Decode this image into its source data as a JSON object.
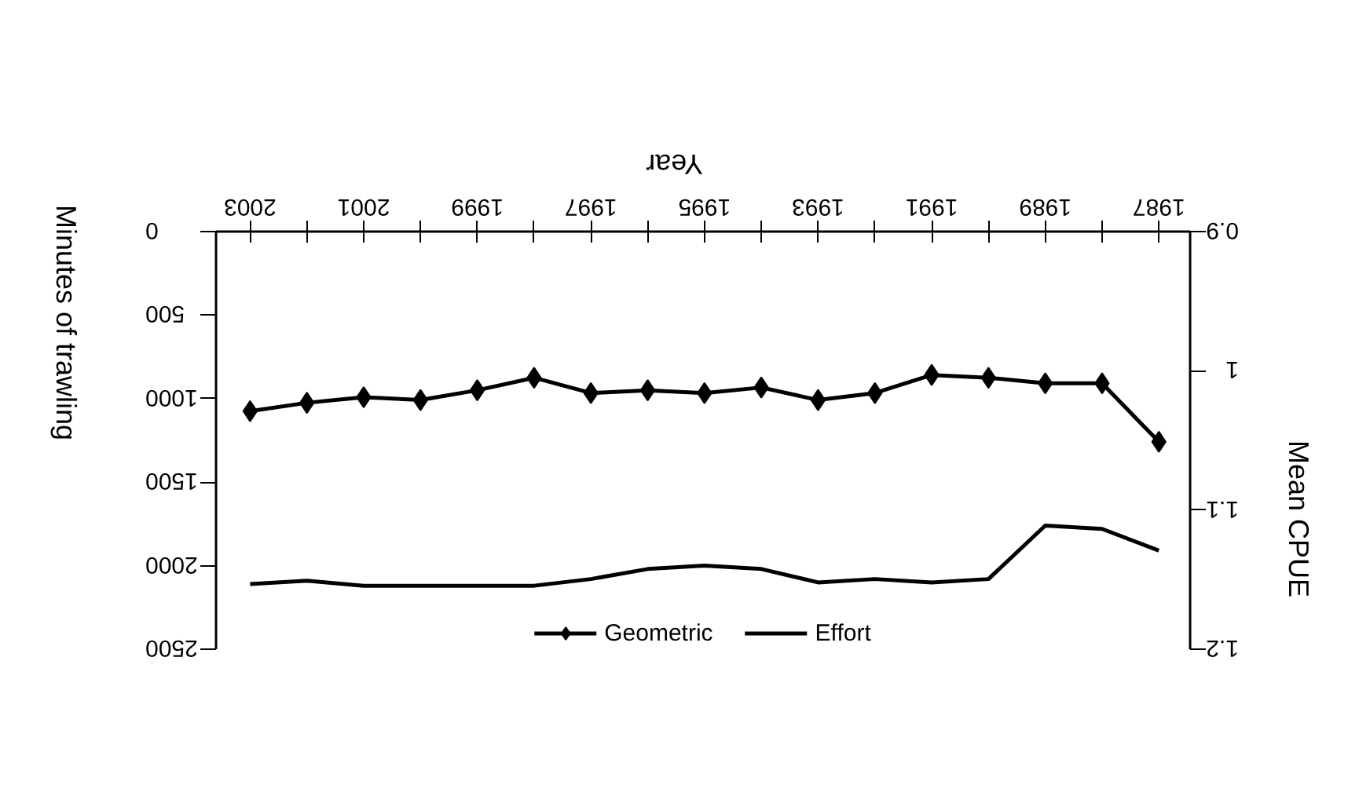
{
  "chart_data": {
    "type": "line",
    "xlabel": "Year",
    "ylabel": "Minutes of trawling",
    "y2label": "Mean CPUE",
    "x": [
      2003,
      2002,
      2001,
      2000,
      1999,
      1998,
      1997,
      1996,
      1995,
      1994,
      1993,
      1992,
      1991,
      1990,
      1989,
      1988,
      1987
    ],
    "xlim": [
      2003.6,
      1986.45
    ],
    "xticks": [
      2003,
      {
        "value": 2002,
        "label": null
      },
      2001,
      {
        "value": 2000,
        "label": null
      },
      1999,
      {
        "value": 1998,
        "label": null
      },
      1997,
      {
        "value": 1996,
        "label": null
      },
      1995,
      {
        "value": 1994,
        "label": null
      },
      1993,
      {
        "value": 1992,
        "label": null
      },
      1991,
      {
        "value": 1990,
        "label": null
      },
      1989,
      {
        "value": 1988,
        "label": null
      },
      1987
    ],
    "ylim": [
      2500,
      0
    ],
    "yticks": [
      0,
      500,
      1000,
      1500,
      2000,
      2500
    ],
    "y2lim": [
      1.2,
      0.9
    ],
    "y2ticks": [
      {
        "value": 0.9,
        "label": "0.9"
      },
      1,
      1.1,
      1.2
    ],
    "series": [
      {
        "name": "Geometric",
        "color": "#000000",
        "axis": "y2",
        "marker": "diamond",
        "values": [
          1.029,
          1.023,
          1.019,
          1.021,
          1.014,
          1.005,
          1.016,
          1.014,
          1.016,
          1.012,
          1.021,
          1.016,
          1.003,
          1.005,
          1.009,
          1.009,
          1.051
        ]
      },
      {
        "name": "Effort",
        "color": "#000000",
        "marker": "none",
        "values": [
          2110,
          2090,
          2120,
          2120,
          2120,
          2120,
          2080,
          2020,
          2000,
          2020,
          2100,
          2080,
          2100,
          2080,
          1760,
          1780,
          1910
        ]
      }
    ],
    "grid": false,
    "legend": "bottom",
    "line_style": "solid"
  }
}
